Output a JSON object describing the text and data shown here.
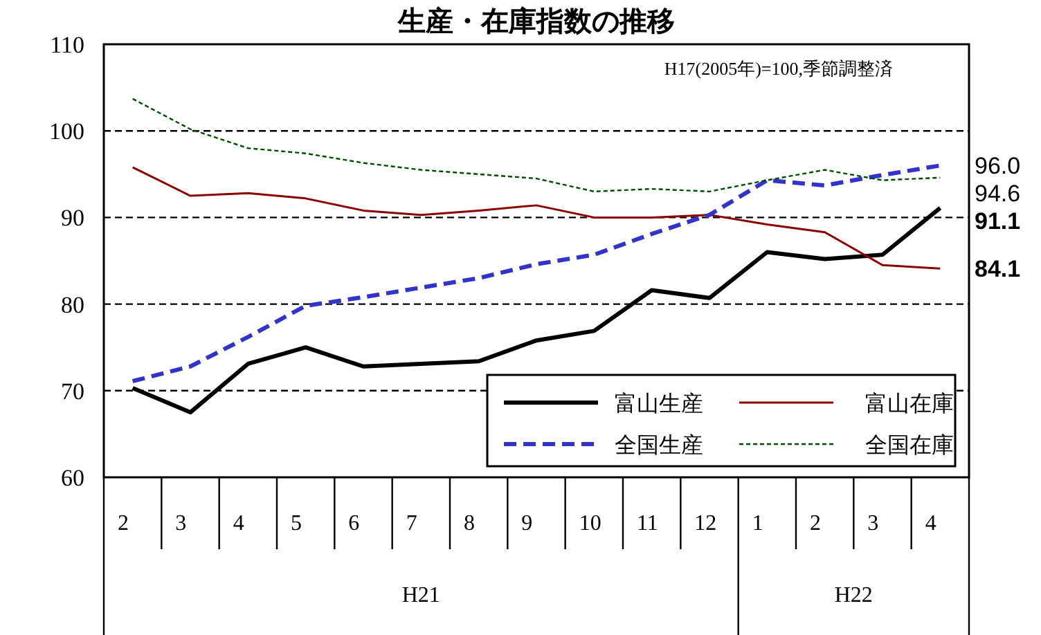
{
  "chart_data": {
    "type": "line",
    "title": "生産・在庫指数の推移",
    "annotations": [
      "H17(2005年)=100,季節調整済",
      "H21",
      "H22"
    ],
    "categories": [
      "2",
      "3",
      "4",
      "5",
      "6",
      "7",
      "8",
      "9",
      "10",
      "11",
      "12",
      "1",
      "2",
      "3",
      "4"
    ],
    "series": [
      {
        "name": "富山生産",
        "color": "#000000",
        "line_style": "solid",
        "values": [
          70.3,
          67.5,
          73.1,
          75.0,
          72.8,
          73.1,
          73.4,
          75.8,
          76.9,
          81.6,
          80.7,
          86.0,
          85.2,
          85.7,
          91.1
        ],
        "value_labels": [
          null,
          null,
          null,
          null,
          null,
          null,
          null,
          null,
          null,
          null,
          null,
          null,
          null,
          null,
          "91.1"
        ]
      },
      {
        "name": "富山在庫",
        "color": "#8b0000",
        "line_style": "solid",
        "values": [
          95.8,
          92.5,
          92.8,
          92.2,
          90.8,
          90.3,
          90.8,
          91.4,
          90.0,
          90.0,
          90.3,
          89.2,
          88.3,
          84.5,
          84.1
        ],
        "value_labels": [
          null,
          null,
          null,
          null,
          null,
          null,
          null,
          null,
          null,
          null,
          null,
          null,
          null,
          null,
          "84.1"
        ]
      },
      {
        "name": "全国生産",
        "color": "#3333cc",
        "line_style": "dashed",
        "values": [
          71.1,
          72.8,
          76.2,
          79.8,
          80.8,
          81.9,
          83.0,
          84.6,
          85.7,
          88.1,
          90.3,
          94.3,
          93.7,
          94.9,
          96.0
        ],
        "value_labels": [
          null,
          null,
          null,
          null,
          null,
          null,
          null,
          null,
          null,
          null,
          null,
          null,
          null,
          null,
          "96.0"
        ]
      },
      {
        "name": "全国在庫",
        "color": "#004d00",
        "line_style": "dotted",
        "values": [
          103.7,
          100.2,
          98.0,
          97.4,
          96.3,
          95.5,
          95.0,
          94.5,
          93.0,
          93.3,
          93.0,
          94.3,
          95.5,
          94.3,
          94.6
        ],
        "value_labels": [
          null,
          null,
          null,
          null,
          null,
          null,
          null,
          null,
          null,
          null,
          null,
          null,
          null,
          null,
          "94.6"
        ]
      }
    ],
    "ylim": [
      60,
      110
    ],
    "yticks": [
      60,
      70,
      80,
      90,
      100,
      110
    ],
    "grid": "y",
    "legend": "bottom right"
  }
}
